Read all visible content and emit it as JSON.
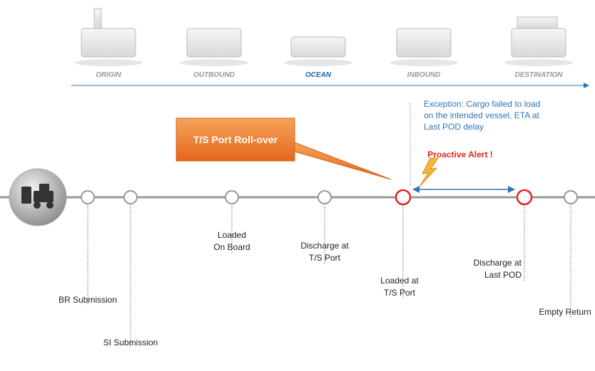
{
  "stages": [
    {
      "label": "ORIGIN",
      "active": false
    },
    {
      "label": "OUTBOUND",
      "active": false
    },
    {
      "label": "OCEAN",
      "active": true
    },
    {
      "label": "INBOUND",
      "active": false
    },
    {
      "label": "DESTINATION",
      "active": false
    }
  ],
  "callout": "T/S Port Roll-over",
  "exception": [
    "Exception: Cargo failed to load",
    "on the intended vessel, ETA at",
    "Last POD delay"
  ],
  "alert": "Proactive Alert !",
  "milestones": [
    {
      "label": [
        "BR Submission"
      ],
      "alert": false
    },
    {
      "label": [
        "SI Submission"
      ],
      "alert": false
    },
    {
      "label": [
        "Loaded",
        "On Board"
      ],
      "alert": false
    },
    {
      "label": [
        "Discharge at",
        "T/S Port"
      ],
      "alert": false
    },
    {
      "label": [
        "Loaded at",
        "T/S Port"
      ],
      "alert": true
    },
    {
      "label": [
        "Discharge at",
        "Last POD"
      ],
      "alert": true
    },
    {
      "label": [
        "Empty Return"
      ],
      "alert": false
    }
  ]
}
